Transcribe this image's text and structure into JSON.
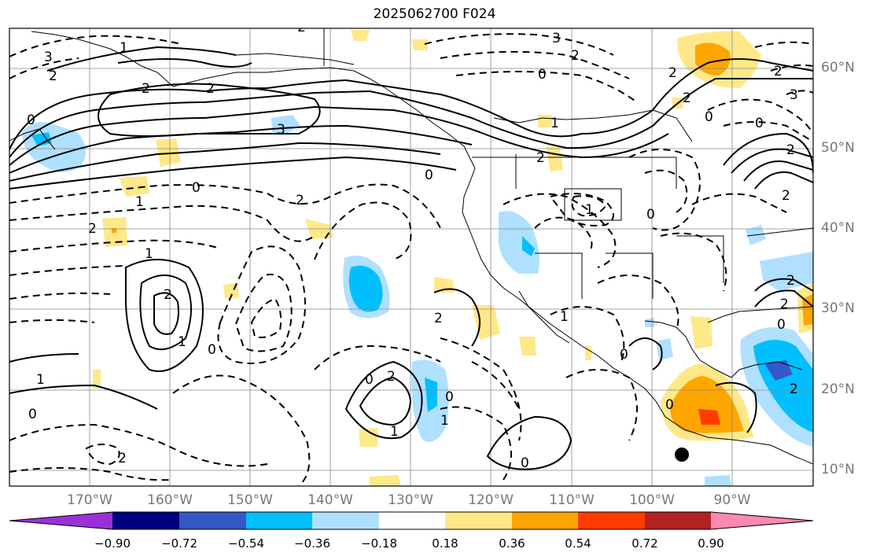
{
  "title": "2025062700 F024",
  "lon_labels": [
    "170°W",
    "160°W",
    "150°W",
    "140°W",
    "130°W",
    "120°W",
    "110°W",
    "100°W",
    "90°W"
  ],
  "lat_labels": [
    "60°N",
    "50°N",
    "40°N",
    "30°N",
    "20°N",
    "10°N"
  ],
  "colorbar": {
    "ticks": [
      "−0.90",
      "−0.72",
      "−0.54",
      "−0.36",
      "−0.18",
      "0.18",
      "0.36",
      "0.54",
      "0.72",
      "0.90"
    ],
    "colors": [
      "#9b30d9",
      "#000080",
      "#3558c8",
      "#00bfff",
      "#b0e0ff",
      "#ffffff",
      "#ffe888",
      "#ffa500",
      "#ff3c00",
      "#b22222",
      "#ff88b0"
    ]
  },
  "contour_labels": [
    "3",
    "2",
    "0",
    "2",
    "1",
    "2",
    "3",
    "2",
    "0",
    "2",
    "1",
    "0",
    "3",
    "2",
    "0",
    "2",
    "2",
    "0",
    "2",
    "3",
    "1",
    "0",
    "2",
    "2",
    "1",
    "0",
    "2",
    "2",
    "1",
    "2",
    "1",
    "0",
    "1",
    "2",
    "0",
    "0",
    "2",
    "0",
    "2",
    "1",
    "0",
    "1",
    "2",
    "2",
    "0",
    "2",
    "1",
    "0",
    "0"
  ],
  "colors": {
    "marker": "#000000",
    "grid": "#888888",
    "coast": "#000000"
  }
}
